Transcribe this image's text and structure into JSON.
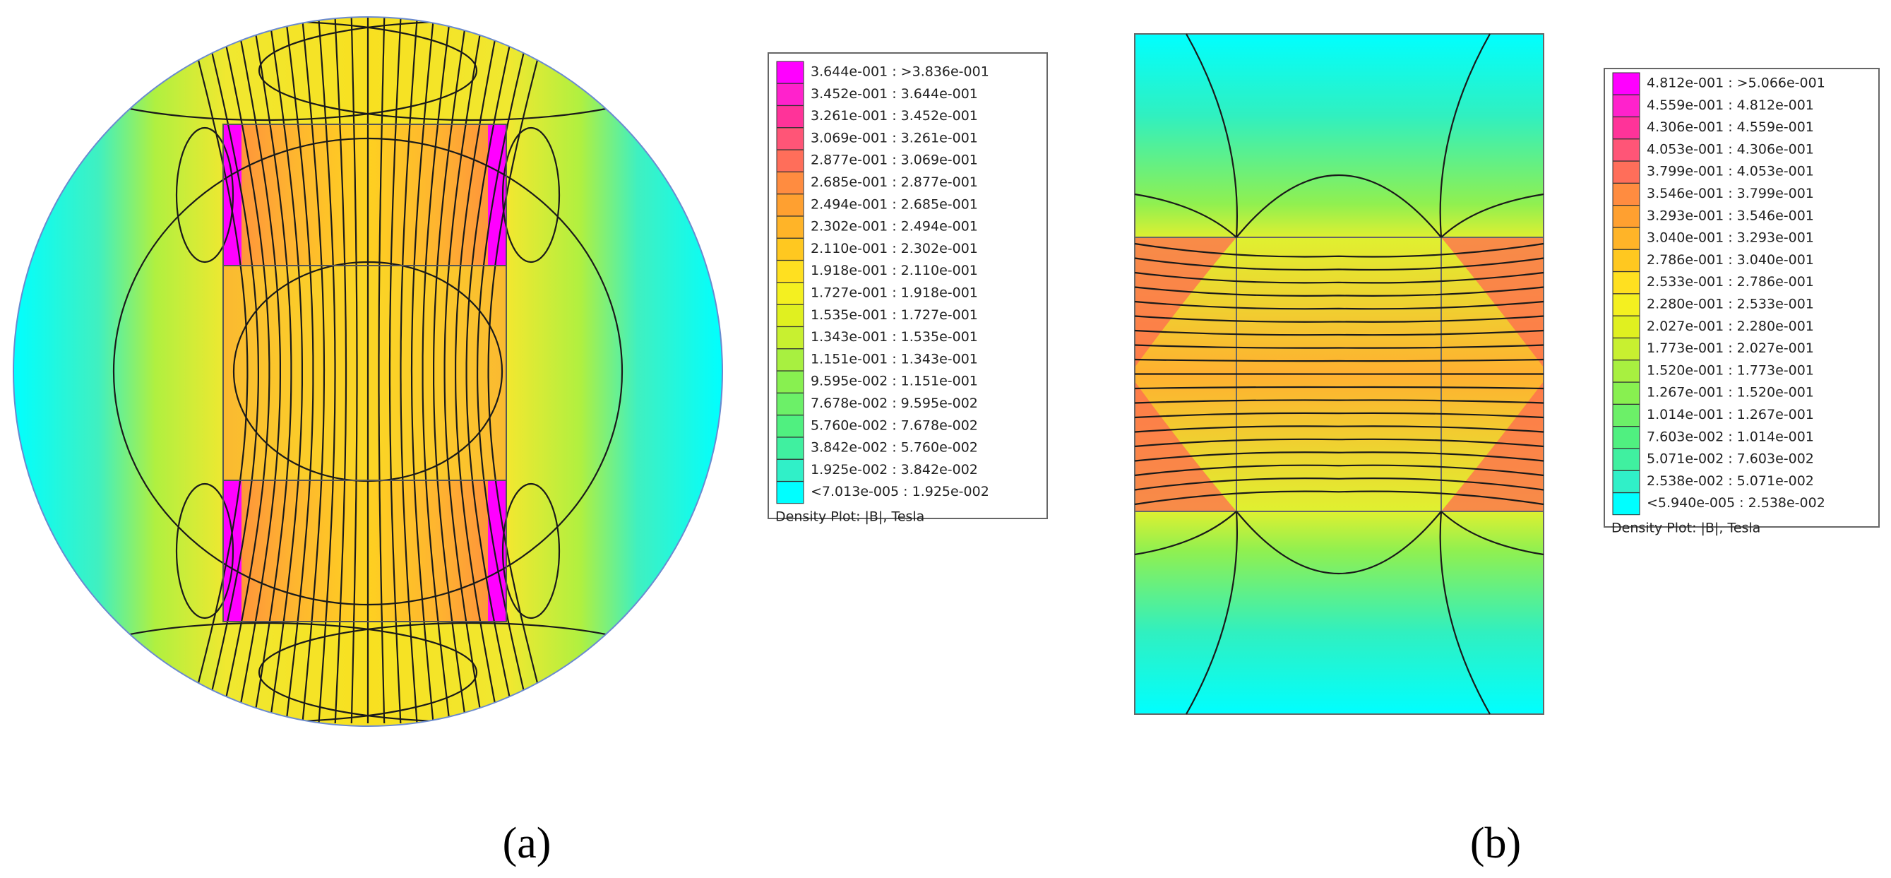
{
  "panels": [
    {
      "legend": {
        "entries": [
          "3.644e-001 : >3.836e-001",
          "3.452e-001 : 3.644e-001",
          "3.261e-001 : 3.452e-001",
          "3.069e-001 : 3.261e-001",
          "2.877e-001 : 3.069e-001",
          "2.685e-001 : 2.877e-001",
          "2.494e-001 : 2.685e-001",
          "2.302e-001 : 2.494e-001",
          "2.110e-001 : 2.302e-001",
          "1.918e-001 : 2.110e-001",
          "1.727e-001 : 1.918e-001",
          "1.535e-001 : 1.727e-001",
          "1.343e-001 : 1.535e-001",
          "1.151e-001 : 1.343e-001",
          "9.595e-002 : 1.151e-001",
          "7.678e-002 : 9.595e-002",
          "5.760e-002 : 7.678e-002",
          "3.842e-002 : 5.760e-002",
          "1.925e-002 : 3.842e-002",
          "<7.013e-005 : 1.925e-002"
        ],
        "footer": "Density Plot: |B|, Tesla"
      },
      "caption": "(a)"
    },
    {
      "legend": {
        "entries": [
          "4.812e-001 : >5.066e-001",
          "4.559e-001 : 4.812e-001",
          "4.306e-001 : 4.559e-001",
          "4.053e-001 : 4.306e-001",
          "3.799e-001 : 4.053e-001",
          "3.546e-001 : 3.799e-001",
          "3.293e-001 : 3.546e-001",
          "3.040e-001 : 3.293e-001",
          "2.786e-001 : 3.040e-001",
          "2.533e-001 : 2.786e-001",
          "2.280e-001 : 2.533e-001",
          "2.027e-001 : 2.280e-001",
          "1.773e-001 : 2.027e-001",
          "1.520e-001 : 1.773e-001",
          "1.267e-001 : 1.520e-001",
          "1.014e-001 : 1.267e-001",
          "7.603e-002 : 1.014e-001",
          "5.071e-002 : 7.603e-002",
          "2.538e-002 : 5.071e-002",
          "<5.940e-005 : 2.538e-002"
        ],
        "footer": "Density Plot: |B|, Tesla"
      },
      "caption": "(b)"
    }
  ]
}
